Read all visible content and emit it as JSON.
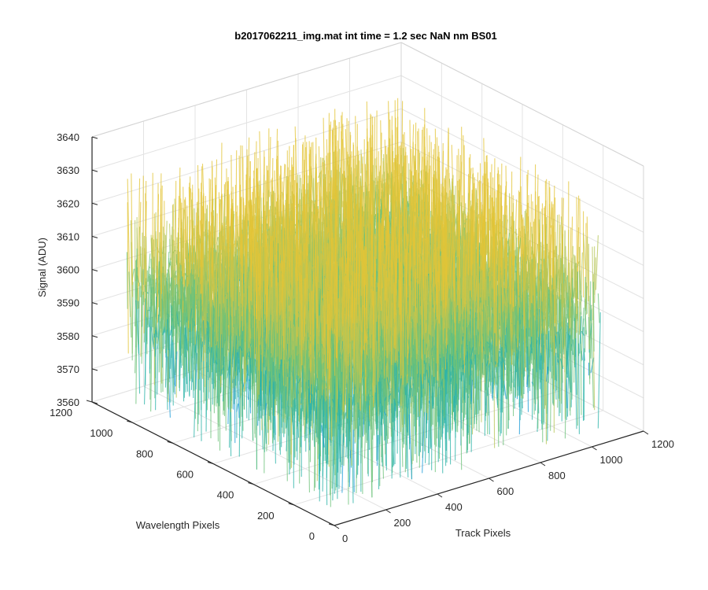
{
  "chart_data": {
    "type": "surface",
    "title": "b2017062211_img.mat int time = 1.2 sec  NaN nm BS01",
    "xlabel": "Track Pixels",
    "ylabel": "Wavelength Pixels",
    "zlabel": "Signal (ADU)",
    "xlim": [
      0,
      1200
    ],
    "ylim": [
      0,
      1200
    ],
    "zlim": [
      3560,
      3640
    ],
    "x_ticks": [
      "0",
      "200",
      "400",
      "600",
      "800",
      "1000",
      "1200"
    ],
    "y_ticks": [
      "0",
      "200",
      "400",
      "600",
      "800",
      "1000",
      "1200"
    ],
    "z_ticks": [
      "3560",
      "3570",
      "3580",
      "3590",
      "3600",
      "3610",
      "3620",
      "3630",
      "3640"
    ],
    "surface_extent": {
      "x": [
        0,
        1024
      ],
      "y": [
        0,
        1024
      ]
    },
    "signal_mean": 3600,
    "signal_range": [
      3565,
      3635
    ],
    "grid": true,
    "colormap": "parula",
    "colors": [
      "#0072bd",
      "#1b9bd7",
      "#2bb3a8",
      "#6cc17a",
      "#b5c557",
      "#e3c437"
    ]
  }
}
